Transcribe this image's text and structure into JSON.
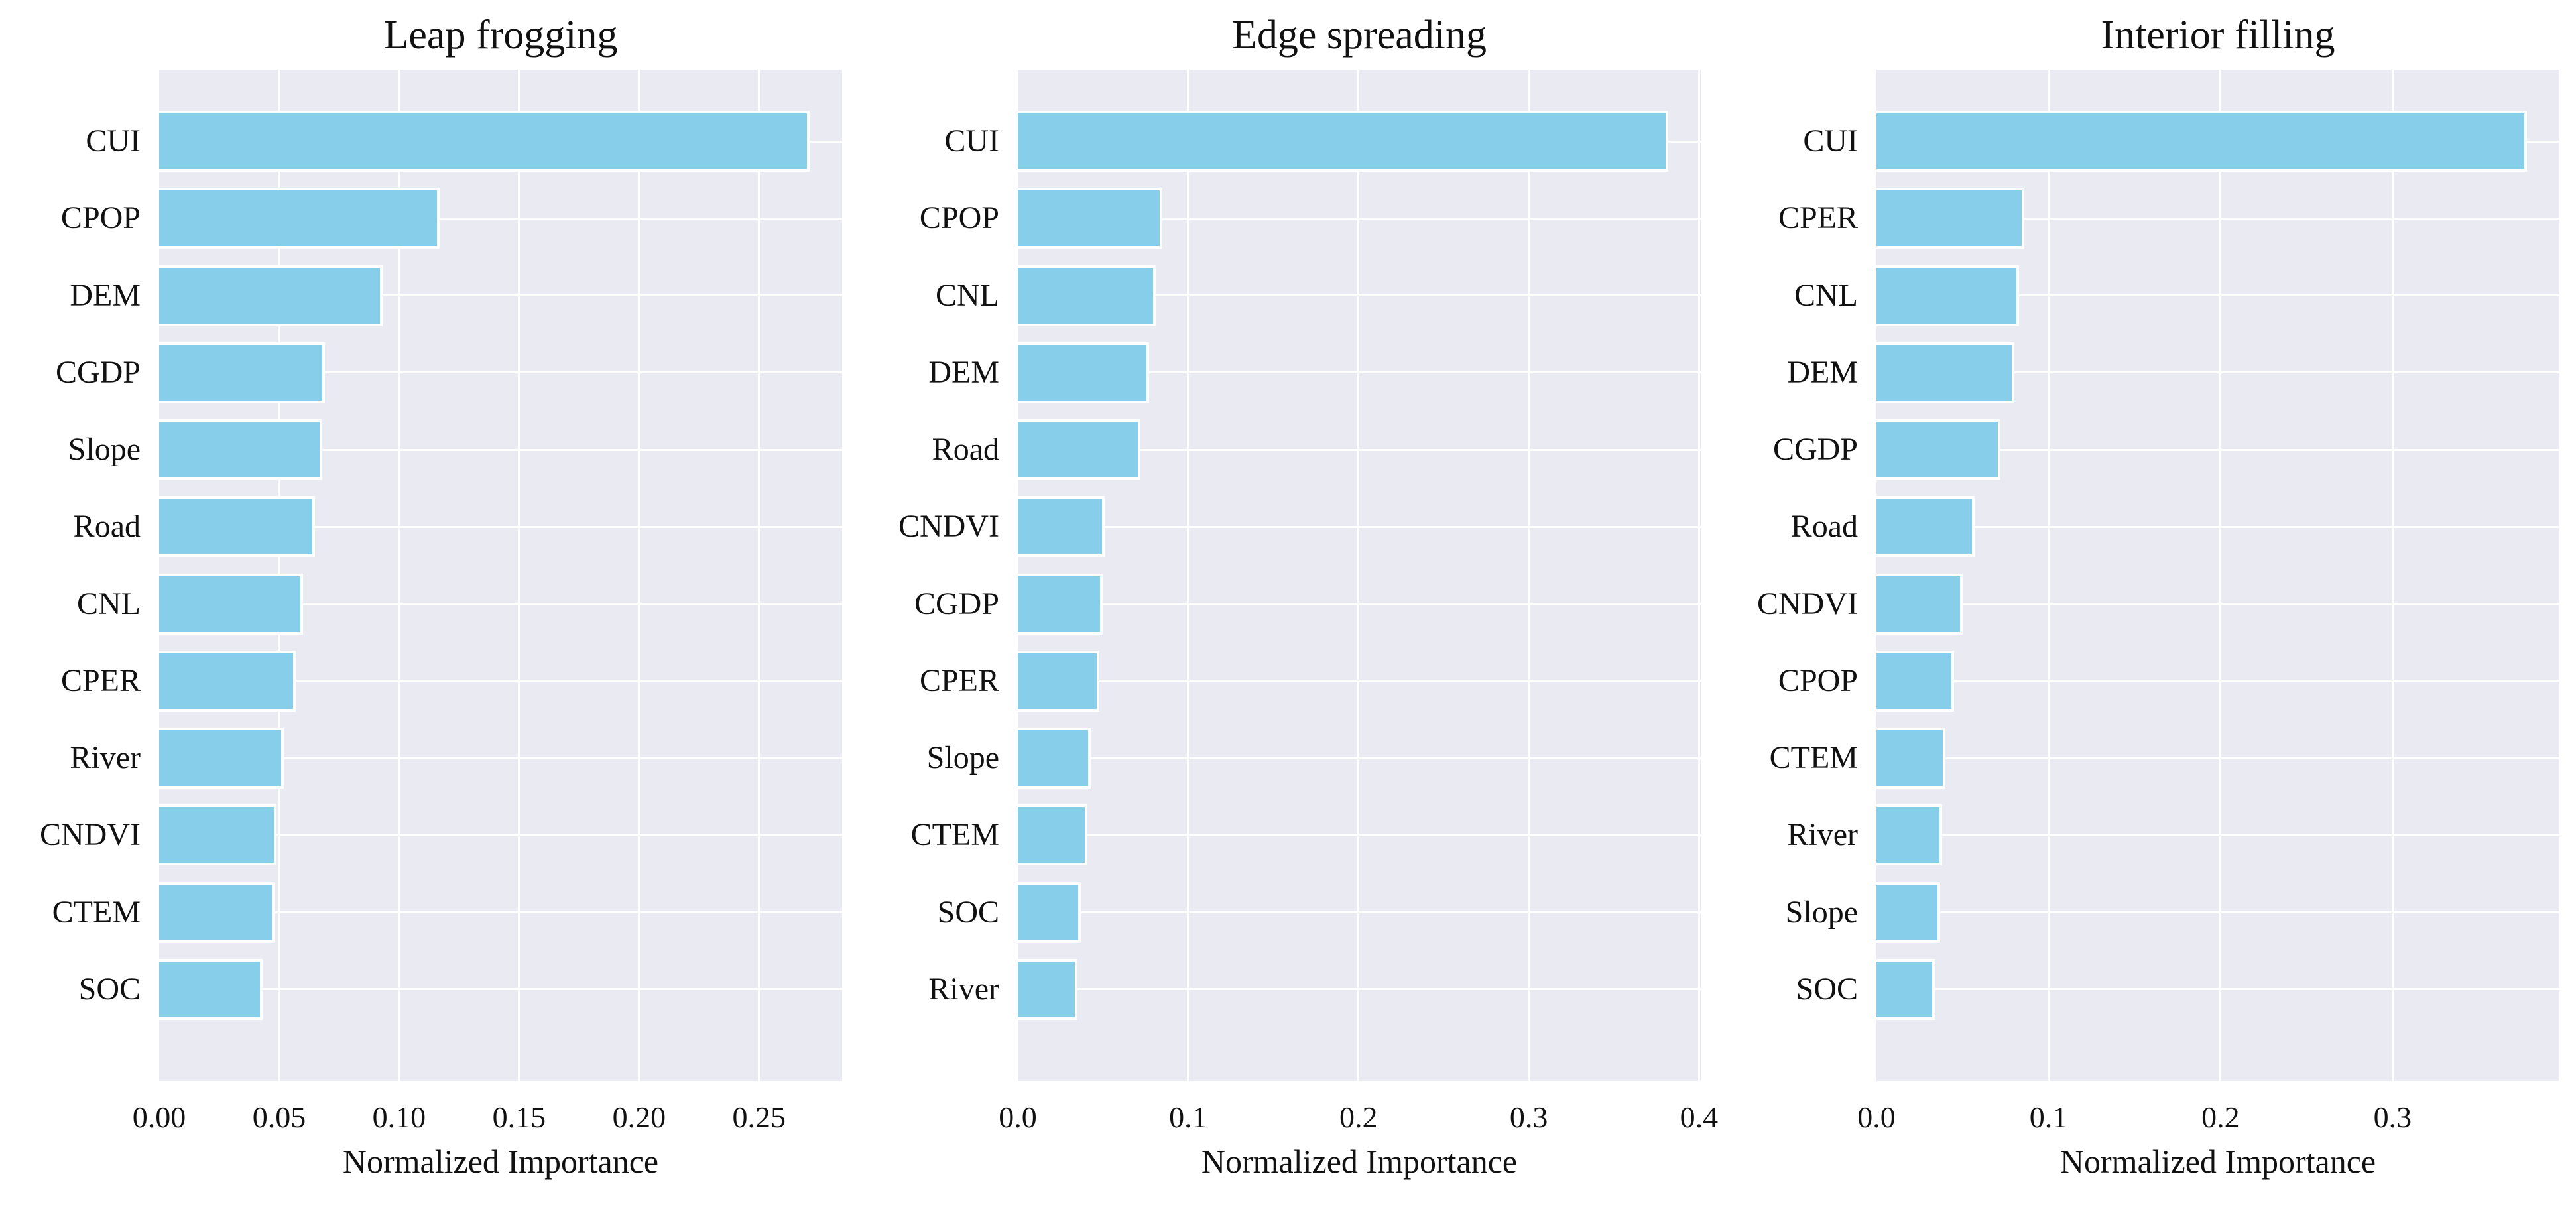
{
  "figure": {
    "background_color": "#ffffff",
    "plot_background_color": "#eaeaf2",
    "grid_color": "#ffffff",
    "bar_color": "#87ceeb",
    "bar_edge_color": "#ffffff",
    "text_color": "#111111"
  },
  "chart_data": [
    {
      "type": "bar",
      "orientation": "horizontal",
      "title": "Leap frogging",
      "xlabel": "Normalized Importance",
      "ylabel": "",
      "grid": true,
      "legend": null,
      "categories": [
        "CUI",
        "CPOP",
        "DEM",
        "CGDP",
        "Slope",
        "Road",
        "CNL",
        "CPER",
        "River",
        "CNDVI",
        "CTEM",
        "SOC"
      ],
      "values": [
        0.271,
        0.117,
        0.093,
        0.069,
        0.068,
        0.065,
        0.06,
        0.057,
        0.052,
        0.049,
        0.048,
        0.043
      ],
      "xtick_values": [
        0.0,
        0.05,
        0.1,
        0.15,
        0.2,
        0.25
      ],
      "xtick_labels": [
        "0.00",
        "0.05",
        "0.10",
        "0.15",
        "0.20",
        "0.25"
      ],
      "xlim": [
        0,
        0.2846
      ]
    },
    {
      "type": "bar",
      "orientation": "horizontal",
      "title": "Edge spreading",
      "xlabel": "Normalized Importance",
      "ylabel": "",
      "grid": true,
      "legend": null,
      "categories": [
        "CUI",
        "CPOP",
        "CNL",
        "DEM",
        "Road",
        "CNDVI",
        "CGDP",
        "CPER",
        "Slope",
        "CTEM",
        "SOC",
        "River"
      ],
      "values": [
        0.382,
        0.085,
        0.081,
        0.077,
        0.072,
        0.051,
        0.05,
        0.048,
        0.043,
        0.041,
        0.037,
        0.035
      ],
      "xtick_values": [
        0.0,
        0.1,
        0.2,
        0.3,
        0.4
      ],
      "xtick_labels": [
        "0.0",
        "0.1",
        "0.2",
        "0.3",
        "0.4"
      ],
      "xlim": [
        0,
        0.401
      ]
    },
    {
      "type": "bar",
      "orientation": "horizontal",
      "title": "Interior filling",
      "xlabel": "Normalized Importance",
      "ylabel": "",
      "grid": true,
      "legend": null,
      "categories": [
        "CUI",
        "CPER",
        "CNL",
        "DEM",
        "CGDP",
        "Road",
        "CNDVI",
        "CPOP",
        "CTEM",
        "River",
        "Slope",
        "SOC"
      ],
      "values": [
        0.378,
        0.086,
        0.083,
        0.08,
        0.072,
        0.057,
        0.05,
        0.045,
        0.04,
        0.038,
        0.037,
        0.034
      ],
      "xtick_values": [
        0.0,
        0.1,
        0.2,
        0.3
      ],
      "xtick_labels": [
        "0.0",
        "0.1",
        "0.2",
        "0.3"
      ],
      "xlim": [
        0,
        0.397
      ]
    }
  ]
}
